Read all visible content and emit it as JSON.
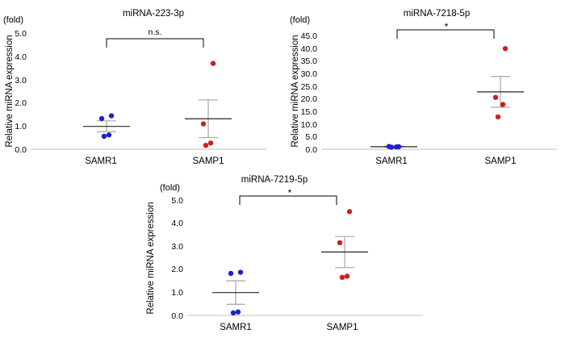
{
  "chart_data": [
    {
      "type": "scatter",
      "title": "miRNA-223-3p",
      "unit_label": "(fold)",
      "ylabel": "Relative miRNA expression",
      "categories": [
        "SAMR1",
        "SAMP1"
      ],
      "ylim": [
        0,
        5
      ],
      "yticks": [
        "0.0",
        "1.0",
        "2.0",
        "3.0",
        "4.0",
        "5.0"
      ],
      "significance": "n.s.",
      "series": [
        {
          "name": "SAMR1",
          "color": "#1f1fd1",
          "points": [
            1.45,
            1.33,
            0.62,
            0.56
          ],
          "mean": 0.99,
          "err_low": 0.76,
          "err_high": 1.23
        },
        {
          "name": "SAMP1",
          "color": "#cc1f1f",
          "points": [
            3.72,
            1.1,
            0.27,
            0.17
          ],
          "mean": 1.32,
          "err_low": 0.5,
          "err_high": 2.14
        }
      ]
    },
    {
      "type": "scatter",
      "title": "miRNA-7218-5p",
      "unit_label": "(fold)",
      "ylabel": "Relative miRNA expression",
      "categories": [
        "SAMR1",
        "SAMP1"
      ],
      "ylim": [
        0,
        45
      ],
      "yticks": [
        "0.0",
        "5.0",
        "10.0",
        "15.0",
        "20.0",
        "25.0",
        "30.0",
        "35.0",
        "40.0",
        "45.0"
      ],
      "significance": "*",
      "series": [
        {
          "name": "SAMR1",
          "color": "#1f1fd1",
          "points": [
            1.0,
            1.1,
            0.9,
            0.8
          ],
          "mean": 1.0,
          "err_low": 0.8,
          "err_high": 1.2
        },
        {
          "name": "SAMP1",
          "color": "#cc1f1f",
          "points": [
            39.8,
            20.5,
            17.7,
            12.8
          ],
          "mean": 22.7,
          "err_low": 16.6,
          "err_high": 28.8
        }
      ]
    },
    {
      "type": "scatter",
      "title": "miRNA-7219-5p",
      "unit_label": "(fold)",
      "ylabel": "Relative miRNA expression",
      "categories": [
        "SAMR1",
        "SAMP1"
      ],
      "ylim": [
        0,
        5
      ],
      "yticks": [
        "0.0",
        "1.0",
        "2.0",
        "3.0",
        "4.0",
        "5.0"
      ],
      "significance": "*",
      "series": [
        {
          "name": "SAMR1",
          "color": "#1f1fd1",
          "points": [
            1.87,
            1.82,
            0.15,
            0.11
          ],
          "mean": 0.99,
          "err_low": 0.48,
          "err_high": 1.5
        },
        {
          "name": "SAMP1",
          "color": "#cc1f1f",
          "points": [
            4.5,
            3.15,
            1.7,
            1.65
          ],
          "mean": 2.75,
          "err_low": 2.07,
          "err_high": 3.42
        }
      ]
    }
  ]
}
